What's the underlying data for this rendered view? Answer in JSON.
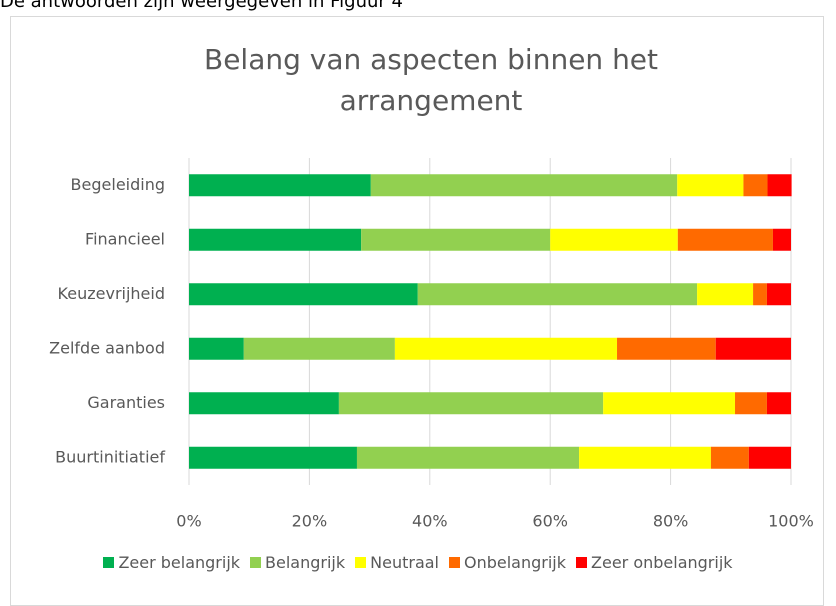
{
  "page_text": "De antwoorden zijn weergegeven in Figuur 4",
  "chart_data": {
    "type": "stacked_barh",
    "title": "Belang van aspecten binnen het arrangement",
    "categories": [
      "Begeleiding",
      "Financieel",
      "Keuzevrijheid",
      "Zelfde aanbod",
      "Garanties",
      "Buurtinitiatief"
    ],
    "series": [
      {
        "name": "Zeer belangrijk",
        "color": "#00b050",
        "values": [
          30.2,
          28.6,
          38.0,
          9.1,
          24.9,
          27.9
        ]
      },
      {
        "name": "Belangrijk",
        "color": "#92d050",
        "values": [
          50.9,
          31.4,
          46.4,
          25.1,
          43.9,
          36.9
        ]
      },
      {
        "name": "Neutraal",
        "color": "#ffff00",
        "values": [
          11.0,
          21.2,
          9.3,
          36.9,
          21.9,
          21.9
        ]
      },
      {
        "name": "Onbelangrijk",
        "color": "#ff6a00",
        "values": [
          4.0,
          15.8,
          2.3,
          16.4,
          5.3,
          6.3
        ]
      },
      {
        "name": "Zeer onbelangrijk",
        "color": "#ff0000",
        "values": [
          4.0,
          3.0,
          4.0,
          12.5,
          4.0,
          7.0
        ]
      }
    ],
    "xlim": [
      0,
      100
    ],
    "xticks": [
      {
        "value": 0,
        "label": "0%"
      },
      {
        "value": 20,
        "label": "20%"
      },
      {
        "value": 40,
        "label": "40%"
      },
      {
        "value": 60,
        "label": "60%"
      },
      {
        "value": 80,
        "label": "80%"
      },
      {
        "value": 100,
        "label": "100%"
      }
    ],
    "grid": true,
    "legend": "bottom"
  }
}
